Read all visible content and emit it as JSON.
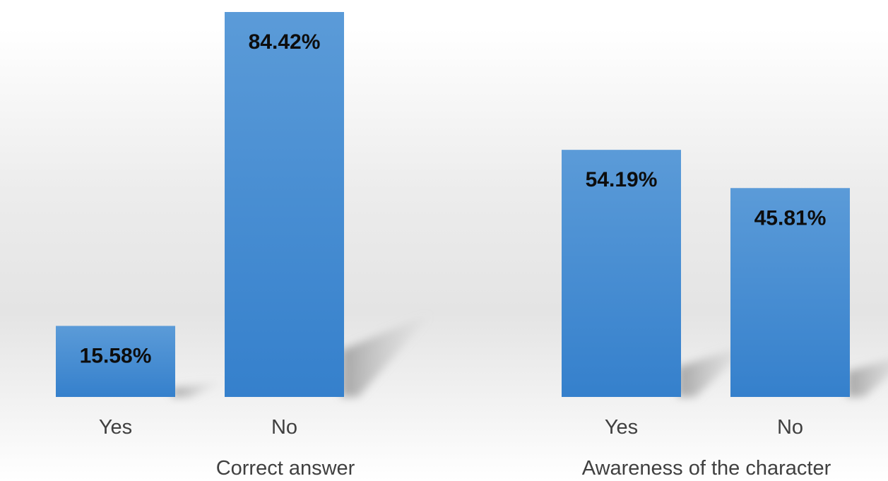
{
  "chart_data": {
    "type": "bar",
    "groups": [
      {
        "label": "Correct answer",
        "categories": [
          "Yes",
          "No"
        ],
        "values": [
          15.58,
          84.42
        ],
        "value_labels": [
          "15.58%",
          "84.42%"
        ]
      },
      {
        "label": "Awareness of the character",
        "categories": [
          "Yes",
          "No"
        ],
        "values": [
          54.19,
          45.81
        ],
        "value_labels": [
          "54.19%",
          "45.81%"
        ]
      }
    ],
    "ylim": [
      0,
      84.42
    ],
    "bar_color": "#4a8fd6",
    "grid": false,
    "legend": "none"
  }
}
